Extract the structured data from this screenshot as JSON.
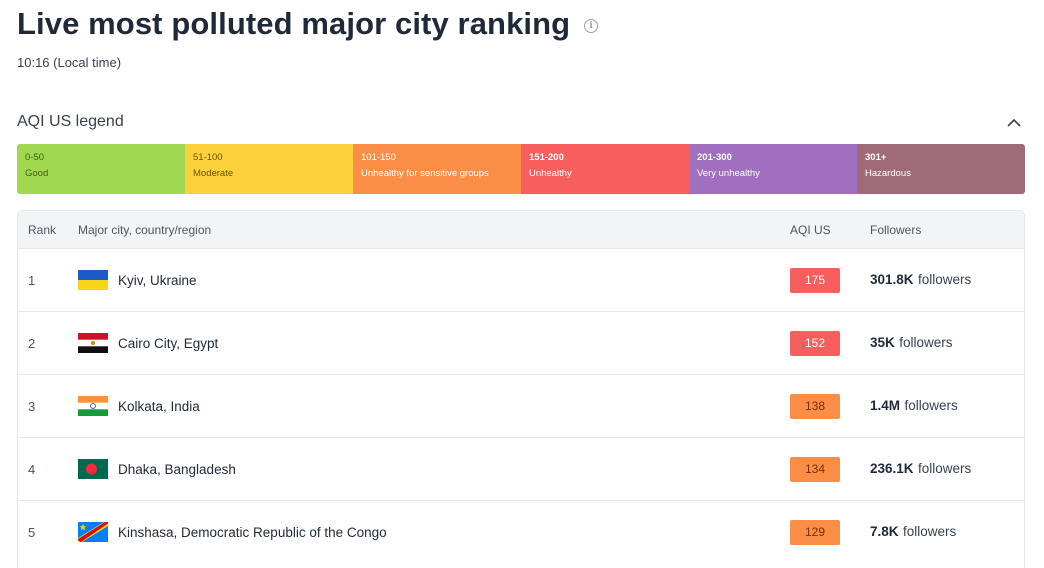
{
  "header": {
    "title": "Live most polluted major city ranking",
    "local_time": "10:16 (Local time)"
  },
  "legend": {
    "title": "AQI US legend",
    "segments": [
      {
        "range": "0-50",
        "label": "Good",
        "color": "#a0d94f"
      },
      {
        "range": "51-100",
        "label": "Moderate",
        "color": "#fcd13b"
      },
      {
        "range": "101-150",
        "label": "Unhealthy for sensitive groups",
        "color": "#fa8e46"
      },
      {
        "range": "151-200",
        "label": "Unhealthy",
        "color": "#f75f5e"
      },
      {
        "range": "201-300",
        "label": "Very unhealthy",
        "color": "#a06fbd"
      },
      {
        "range": "301+",
        "label": "Hazardous",
        "color": "#a06b79"
      }
    ]
  },
  "table": {
    "columns": {
      "rank": "Rank",
      "city": "Major city, country/region",
      "aqi": "AQI US",
      "followers": "Followers"
    },
    "rows": [
      {
        "rank": "1",
        "city": "Kyiv, Ukraine",
        "flag": "ukraine-flag-icon",
        "aqi": "175",
        "followers_count": "301.8K",
        "followers_word": "followers"
      },
      {
        "rank": "2",
        "city": "Cairo City, Egypt",
        "flag": "egypt-flag-icon",
        "aqi": "152",
        "followers_count": "35K",
        "followers_word": "followers"
      },
      {
        "rank": "3",
        "city": "Kolkata, India",
        "flag": "india-flag-icon",
        "aqi": "138",
        "followers_count": "1.4M",
        "followers_word": "followers"
      },
      {
        "rank": "4",
        "city": "Dhaka, Bangladesh",
        "flag": "bangladesh-flag-icon",
        "aqi": "134",
        "followers_count": "236.1K",
        "followers_word": "followers"
      },
      {
        "rank": "5",
        "city": "Kinshasa, Democratic Republic of the Congo",
        "flag": "drc-flag-icon",
        "aqi": "129",
        "followers_count": "7.8K",
        "followers_word": "followers"
      }
    ]
  }
}
